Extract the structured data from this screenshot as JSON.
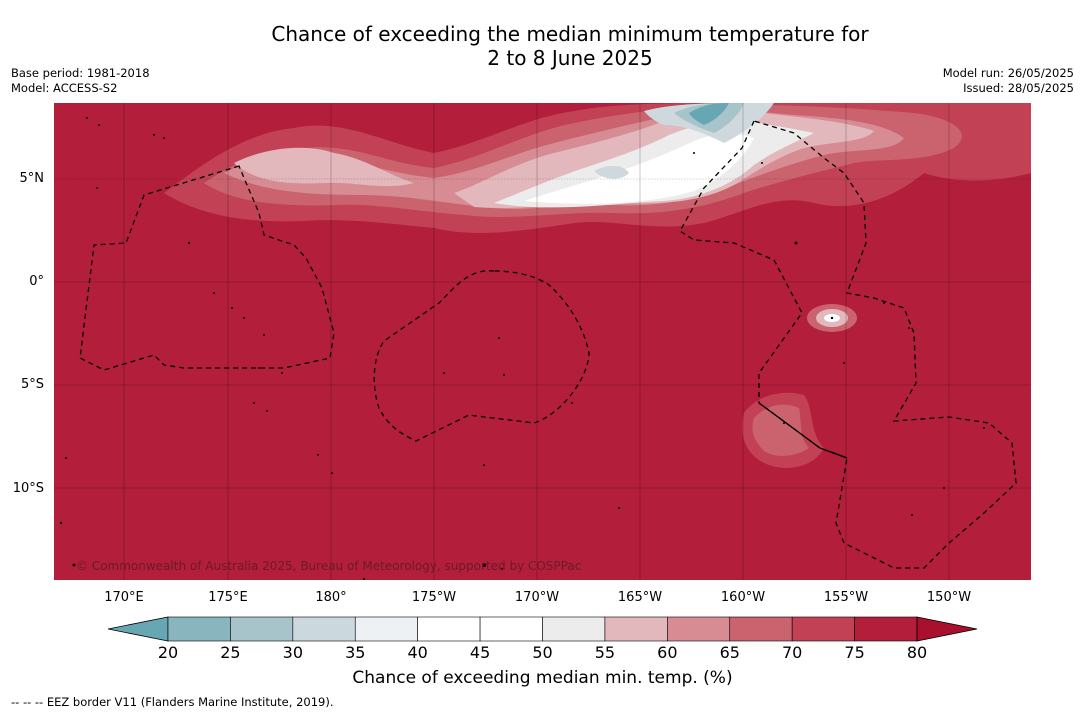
{
  "title_line1": "Chance of exceeding the median minimum temperature for",
  "title_line2": "2 to 8 June 2025",
  "meta": {
    "base_period": "Base period: 1981-2018",
    "model": "Model: ACCESS-S2",
    "model_run": "Model run: 26/05/2025",
    "issued": "Issued: 28/05/2025"
  },
  "map": {
    "lat_labels": [
      "5°N",
      "0°",
      "5°S",
      "10°S"
    ],
    "lon_labels": [
      "170°E",
      "175°E",
      "180°",
      "175°W",
      "170°W",
      "165°W",
      "160°W",
      "155°W",
      "150°W"
    ],
    "copyright": "© Commonwealth of Australia 2025, Bureau of Meteorology, supported by COSPPac",
    "colors": {
      "c80": "#b31e3b",
      "c75": "#c24155",
      "c70": "#cb636f",
      "c65": "#d78b93",
      "c60": "#e2b8bc",
      "c55": "#ececec",
      "c50": "#ffffff",
      "c40": "#cfd9dd",
      "c30": "#a6c4c9",
      "c20": "#66a7b3"
    }
  },
  "colorbar": {
    "ticks": [
      "20",
      "25",
      "30",
      "35",
      "40",
      "45",
      "50",
      "55",
      "60",
      "65",
      "70",
      "75",
      "80"
    ],
    "colors": [
      "#66a7b3",
      "#88b5be",
      "#a6c4c9",
      "#cbd8dd",
      "#edf1f3",
      "#ffffff",
      "#ffffff",
      "#ececec",
      "#e2b8bc",
      "#d78b93",
      "#cb636f",
      "#c24155",
      "#b31e3b"
    ],
    "label": "Chance of exceeding median min. temp. (%)"
  },
  "footnote": "--  --  -- EEZ border V11 (Flanders Marine Institute, 2019)."
}
